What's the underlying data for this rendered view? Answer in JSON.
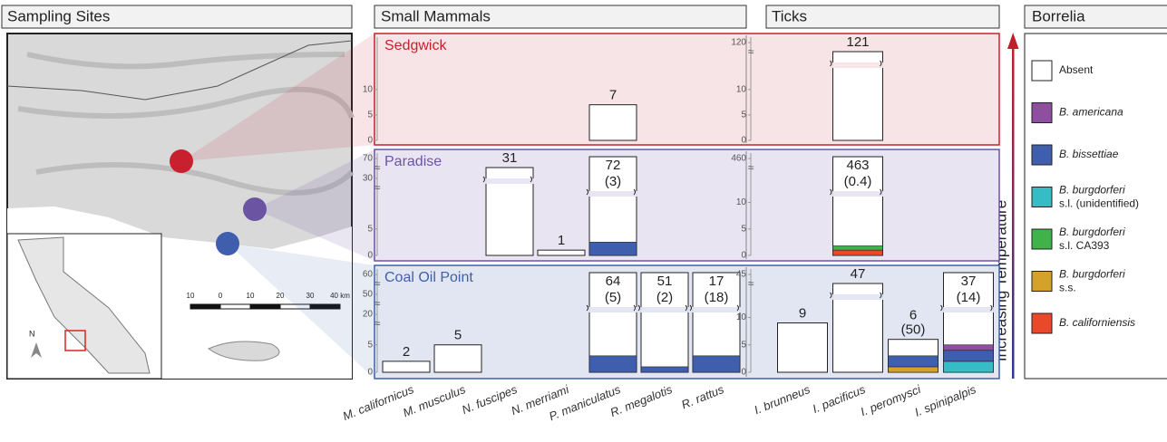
{
  "headers": {
    "sites": "Sampling Sites",
    "mammals": "Small Mammals",
    "ticks": "Ticks",
    "borrelia": "Borrelia"
  },
  "axis_label": "Increasing Temperature",
  "mammal_species": [
    "M. californicus",
    "M. musculus",
    "N. fuscipes",
    "N. merriami",
    "P. maniculatus",
    "R. megalotis",
    "R. rattus"
  ],
  "tick_species": [
    "I. brunneus",
    "I. pacificus",
    "I. peromysci",
    "I. spinipalpis"
  ],
  "map": {
    "scale_labels": [
      "10",
      "0",
      "10",
      "20",
      "30",
      "40 km"
    ],
    "north": "N"
  },
  "legend": [
    {
      "name": "Absent",
      "color": "#ffffff"
    },
    {
      "name": "B. americana",
      "color": "#8e4fa0"
    },
    {
      "name": "B. bissettiae",
      "color": "#3f5fae"
    },
    {
      "name": "B. burgdorferi",
      "note": "s.l. (unidentified)",
      "color": "#35bcc4"
    },
    {
      "name": "B. burgdorferi",
      "note": "s.l. CA393",
      "color": "#3fb24a"
    },
    {
      "name": "B. burgdorferi",
      "note": "s.s.",
      "color": "#d4a22a"
    },
    {
      "name": "B. californiensis",
      "color": "#e9492a"
    }
  ],
  "sites": [
    {
      "name": "Sedgwick",
      "color": "#c8202f",
      "shade": "#f7e4e6",
      "mammals": {
        "ylim": [
          0,
          21
        ],
        "break": 12,
        "yticks": [
          0,
          5,
          10
        ],
        "upper_ticks": [],
        "values": [
          null,
          null,
          null,
          null,
          7,
          null,
          null
        ],
        "prevalence_labels": [
          null,
          null,
          null,
          null,
          null,
          null,
          null
        ],
        "segments": [
          null,
          null,
          null,
          null,
          null,
          null,
          null
        ]
      },
      "ticks": {
        "ylim": [
          0,
          21
        ],
        "break": 12,
        "yticks": [
          0,
          5,
          10
        ],
        "upper_ticks": [
          120
        ],
        "values": [
          null,
          121,
          null,
          null
        ],
        "prevalence_labels": [
          null,
          null,
          null,
          null
        ],
        "segments": [
          null,
          null,
          null,
          null
        ]
      }
    },
    {
      "name": "Paradise",
      "color": "#6b55a3",
      "shade": "#e9e4f1",
      "mammals": {
        "ylim": [
          0,
          20
        ],
        "break": 8,
        "yticks": [
          0,
          5
        ],
        "upper_ticks": [
          70,
          30
        ],
        "values": [
          null,
          null,
          31,
          1,
          72,
          null,
          null
        ],
        "prevalence_labels": [
          null,
          null,
          null,
          null,
          "(3)",
          null,
          null
        ],
        "segments": [
          null,
          null,
          null,
          null,
          [
            {
              "color": "#3f5fae",
              "value": 2.5
            }
          ],
          null,
          null
        ]
      },
      "ticks": {
        "ylim": [
          0,
          20
        ],
        "break": 12,
        "yticks": [
          0,
          5,
          10
        ],
        "upper_ticks": [
          460
        ],
        "values": [
          null,
          463,
          null,
          null
        ],
        "prevalence_labels": [
          null,
          "(0.4)",
          null,
          null
        ],
        "segments": [
          null,
          [
            {
              "color": "#e9492a",
              "value": 1
            },
            {
              "color": "#3fb24a",
              "value": 0.8
            }
          ],
          null,
          null
        ]
      }
    },
    {
      "name": "Coal Oil Point",
      "color": "#3f5fae",
      "shade": "#e2e6f2",
      "mammals": {
        "ylim": [
          0,
          19.5
        ],
        "break": 9,
        "yticks": [
          0,
          5
        ],
        "upper_ticks": [
          60,
          50,
          20
        ],
        "values": [
          2,
          5,
          null,
          null,
          64,
          51,
          17
        ],
        "prevalence_labels": [
          null,
          null,
          null,
          null,
          "(5)",
          "(2)",
          "(18)"
        ],
        "segments": [
          null,
          null,
          null,
          null,
          [
            {
              "color": "#3f5fae",
              "value": 3
            }
          ],
          [
            {
              "color": "#3f5fae",
              "value": 1
            }
          ],
          [
            {
              "color": "#3f5fae",
              "value": 3
            }
          ]
        ]
      },
      "ticks": {
        "ylim": [
          0,
          19.5
        ],
        "break": 10,
        "yticks": [
          0,
          5,
          10
        ],
        "upper_ticks": [
          45
        ],
        "values": [
          9,
          47,
          6,
          37
        ],
        "prevalence_labels": [
          null,
          null,
          "(50)",
          "(14)"
        ],
        "segments": [
          null,
          null,
          [
            {
              "color": "#d4a22a",
              "value": 1
            },
            {
              "color": "#3f5fae",
              "value": 2
            }
          ],
          [
            {
              "color": "#35bcc4",
              "value": 2
            },
            {
              "color": "#3f5fae",
              "value": 2
            },
            {
              "color": "#8e4fa0",
              "value": 1
            }
          ]
        ]
      }
    }
  ]
}
